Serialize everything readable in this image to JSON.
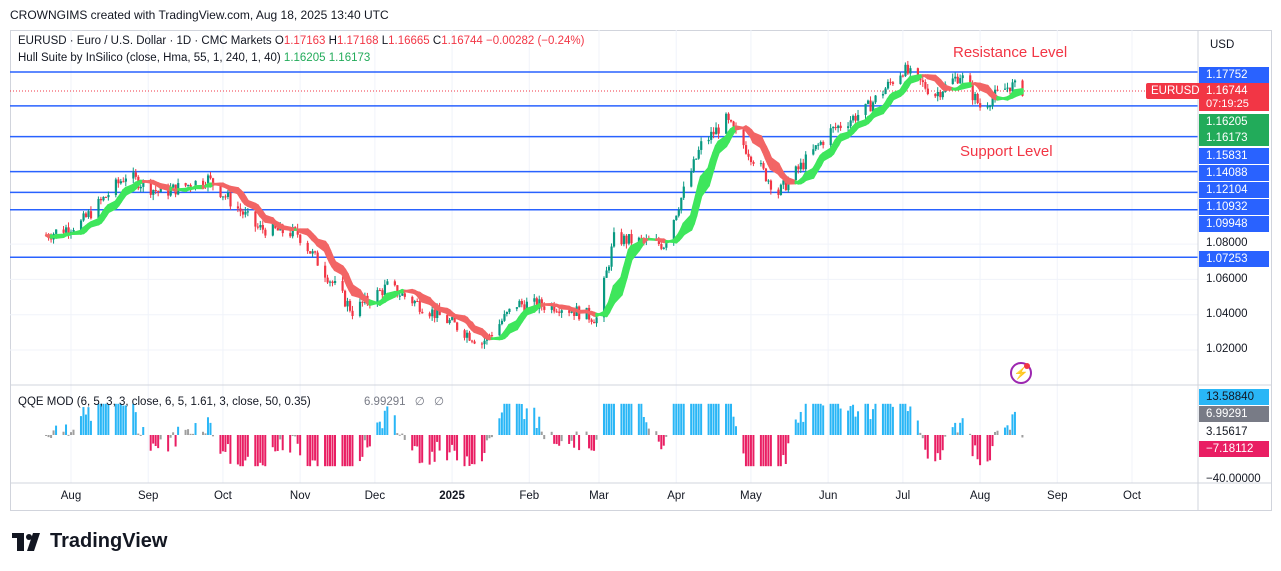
{
  "credit": "CROWNGIMS created with TradingView.com, Aug 18, 2025 13:40 UTC",
  "legend": {
    "symbol": "EURUSD · Euro / U.S. Dollar · 1D · CMC Markets",
    "o_label": "O",
    "o_val": "1.17163",
    "h_label": "H",
    "h_val": "1.17168",
    "l_label": "L",
    "l_val": "1.16665",
    "c_label": "C",
    "c_val": "1.16744",
    "change": "−0.00282 (−0.24%)",
    "indicator": "Hull Suite by InSilico (close, Hma, 55, 1, 240, 1, 40)",
    "ind_val1": "1.16205",
    "ind_val2": "1.16173"
  },
  "qqe_legend": {
    "name": "QQE MOD (6, 5, 3, 3, close, 6, 5, 1.61, 3, close, 50, 0.35)",
    "value": "6.99291",
    "na1": "∅",
    "na2": "∅"
  },
  "annotations": {
    "resistance": "Resistance Level",
    "support": "Support Level"
  },
  "currency_button": "USD",
  "symbol_badge": "EURUSD",
  "countdown": "07:19:25",
  "brand": "TradingView",
  "colors": {
    "level_line": "#2962ff",
    "up_candle": "#089981",
    "down_candle": "#f23645",
    "hull_up": "#3ee65c",
    "hull_down": "#f26565",
    "qqe_up": "#29b6f6",
    "qqe_down": "#e91e63",
    "qqe_neutral": "#9e9e9e"
  },
  "price_labels": [
    {
      "text": "1.17752",
      "bg": "#2962ff"
    },
    {
      "text": "1.16744",
      "bg": "#f23645"
    },
    {
      "text": "1.16205",
      "bg": "#22ab5a"
    },
    {
      "text": "1.16173",
      "bg": "#22ab5a"
    },
    {
      "text": "1.15831",
      "bg": "#2962ff"
    },
    {
      "text": "1.14088",
      "bg": "#2962ff"
    },
    {
      "text": "1.12104",
      "bg": "#2962ff"
    },
    {
      "text": "1.10932",
      "bg": "#2962ff"
    },
    {
      "text": "1.09948",
      "bg": "#2962ff"
    },
    {
      "text": "1.07253",
      "bg": "#2962ff"
    }
  ],
  "axis_ticks": [
    "1.08000",
    "1.06000",
    "1.04000",
    "1.02000"
  ],
  "qqe_axis": [
    {
      "text": "13.58840",
      "bg": "#29b6f6",
      "color": "#131722"
    },
    {
      "text": "6.99291",
      "bg": "#787b86",
      "color": "#ffffff"
    },
    {
      "text": "3.15617",
      "bg": "",
      "color": "#131722"
    },
    {
      "text": "−7.18112",
      "bg": "#e91e63",
      "color": "#ffffff"
    },
    {
      "text": "−40.00000",
      "bg": "",
      "color": "#131722"
    }
  ],
  "months": [
    {
      "label": "Aug",
      "bold": false
    },
    {
      "label": "Sep",
      "bold": false
    },
    {
      "label": "Oct",
      "bold": false
    },
    {
      "label": "Nov",
      "bold": false
    },
    {
      "label": "Dec",
      "bold": false
    },
    {
      "label": "2025",
      "bold": true
    },
    {
      "label": "Feb",
      "bold": false
    },
    {
      "label": "Mar",
      "bold": false
    },
    {
      "label": "Apr",
      "bold": false
    },
    {
      "label": "May",
      "bold": false
    },
    {
      "label": "Jun",
      "bold": false
    },
    {
      "label": "Jul",
      "bold": false
    },
    {
      "label": "Aug",
      "bold": false
    },
    {
      "label": "Sep",
      "bold": false
    },
    {
      "label": "Oct",
      "bold": false
    }
  ],
  "chart_data": {
    "type": "candlestick",
    "symbol": "EURUSD",
    "interval": "1D",
    "horizontal_levels": [
      1.17752,
      1.15831,
      1.14088,
      1.12104,
      1.10932,
      1.09948,
      1.07253
    ],
    "last_close": 1.16744,
    "hull_values": [
      1.16205,
      1.16173
    ],
    "close_path": [
      {
        "date": "2024-07-22",
        "close": 1.085
      },
      {
        "date": "2024-08-05",
        "close": 1.092
      },
      {
        "date": "2024-08-23",
        "close": 1.119
      },
      {
        "date": "2024-09-06",
        "close": 1.109
      },
      {
        "date": "2024-09-25",
        "close": 1.117
      },
      {
        "date": "2024-10-15",
        "close": 1.089
      },
      {
        "date": "2024-10-31",
        "close": 1.086
      },
      {
        "date": "2024-11-22",
        "close": 1.042
      },
      {
        "date": "2024-12-06",
        "close": 1.056
      },
      {
        "date": "2024-12-31",
        "close": 1.036
      },
      {
        "date": "2025-01-13",
        "close": 1.024
      },
      {
        "date": "2025-01-27",
        "close": 1.046
      },
      {
        "date": "2025-02-13",
        "close": 1.045
      },
      {
        "date": "2025-02-28",
        "close": 1.038
      },
      {
        "date": "2025-03-07",
        "close": 1.083
      },
      {
        "date": "2025-03-27",
        "close": 1.08
      },
      {
        "date": "2025-04-11",
        "close": 1.136
      },
      {
        "date": "2025-04-21",
        "close": 1.15
      },
      {
        "date": "2025-05-12",
        "close": 1.109
      },
      {
        "date": "2025-06-02",
        "close": 1.144
      },
      {
        "date": "2025-06-16",
        "close": 1.156
      },
      {
        "date": "2025-07-01",
        "close": 1.179
      },
      {
        "date": "2025-07-14",
        "close": 1.165
      },
      {
        "date": "2025-07-24",
        "close": 1.176
      },
      {
        "date": "2025-08-01",
        "close": 1.158
      },
      {
        "date": "2025-08-13",
        "close": 1.17
      },
      {
        "date": "2025-08-18",
        "close": 1.16744
      }
    ],
    "ylim": [
      1.01,
      1.183
    ],
    "qqe_ylim": [
      -40,
      40
    ]
  }
}
